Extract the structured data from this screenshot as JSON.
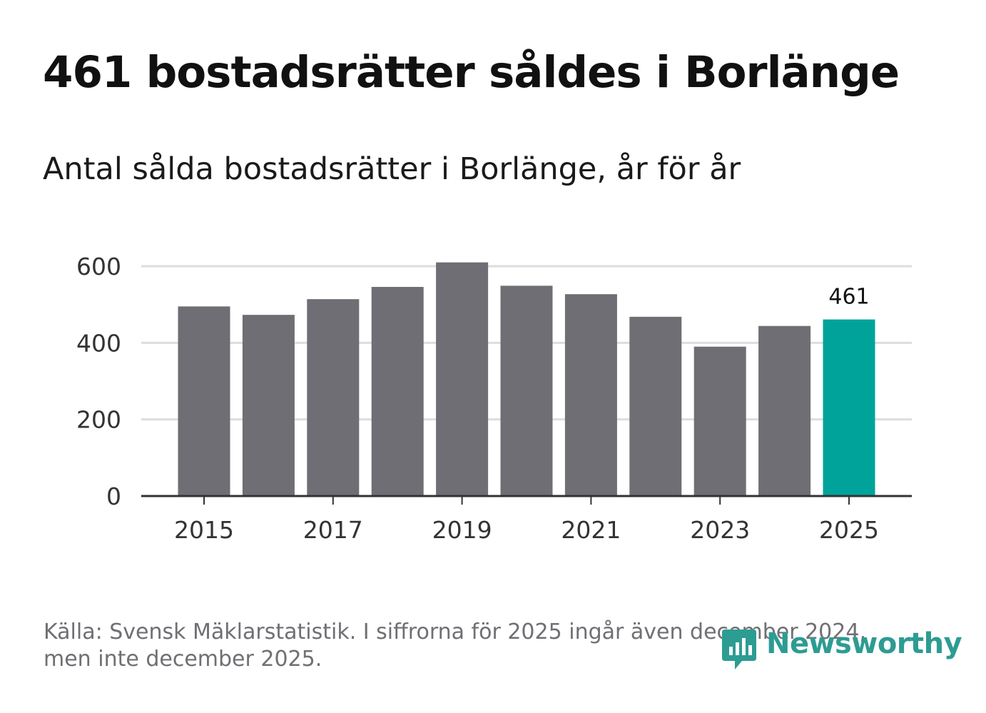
{
  "title": "461 bostadsrätter såldes i Borlänge",
  "subtitle": "Antal sålda bostadsrätter i Borlänge, år för år",
  "footer": {
    "line1": "Källa: Svensk Mäklarstatistik. I siffrorna för 2025 ingår även december 2024,",
    "line2": "men inte december 2025."
  },
  "logo": {
    "text": "Newsworthy"
  },
  "colors": {
    "bar": "#6f6e74",
    "highlight": "#00a39a",
    "grid": "#dddddd",
    "axis": "#333333",
    "logo": "#2d9c93"
  },
  "chart_data": {
    "type": "bar",
    "title": "Antal sålda bostadsrätter i Borlänge, år för år",
    "xlabel": "",
    "ylabel": "",
    "categories": [
      "2015",
      "2016",
      "2017",
      "2018",
      "2019",
      "2020",
      "2021",
      "2022",
      "2023",
      "2024",
      "2025"
    ],
    "values": [
      495,
      473,
      514,
      546,
      610,
      549,
      527,
      468,
      390,
      444,
      461
    ],
    "highlight_index": 10,
    "data_labels": [
      {
        "index": 10,
        "text": "461"
      }
    ],
    "ylim": [
      0,
      600
    ],
    "yticks": [
      0,
      200,
      400,
      600
    ],
    "xticks": [
      "2015",
      "2017",
      "2019",
      "2021",
      "2023",
      "2025"
    ],
    "grid": true,
    "legend": "none"
  }
}
